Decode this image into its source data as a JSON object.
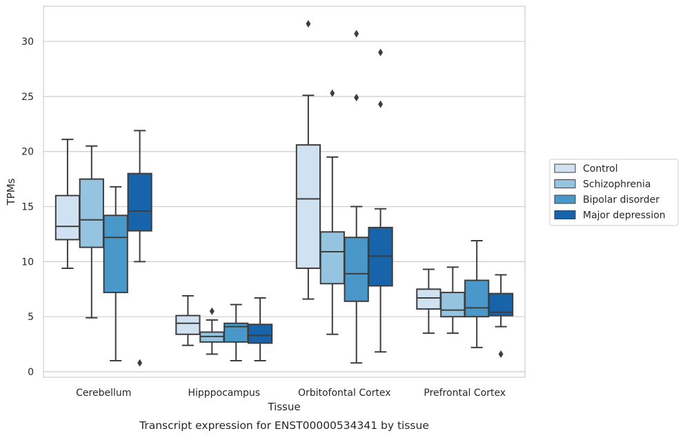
{
  "chart_data": {
    "type": "box",
    "title": "",
    "caption": "Transcript expression for ENST00000534341 by tissue",
    "xlabel": "Tissue",
    "ylabel": "TPMs",
    "ylim": [
      -0.5,
      33.2
    ],
    "yticks": [
      0,
      5,
      10,
      15,
      20,
      25,
      30
    ],
    "grid": true,
    "legend_position": "right",
    "categories": [
      "Cerebellum",
      "Hipppocampus",
      "Orbitofontal Cortex",
      "Prefrontal Cortex"
    ],
    "series": [
      {
        "name": "Control",
        "color": "#d0e1f2",
        "boxes": [
          {
            "whislo": 9.4,
            "q1": 12.0,
            "med": 13.2,
            "q3": 16.0,
            "whishi": 21.1,
            "fliers": []
          },
          {
            "whislo": 2.4,
            "q1": 3.4,
            "med": 4.4,
            "q3": 5.1,
            "whishi": 6.9,
            "fliers": []
          },
          {
            "whislo": 6.6,
            "q1": 9.4,
            "med": 15.7,
            "q3": 20.6,
            "whishi": 25.1,
            "fliers": [
              31.6
            ]
          },
          {
            "whislo": 3.5,
            "q1": 5.7,
            "med": 6.7,
            "q3": 7.5,
            "whishi": 9.3,
            "fliers": []
          }
        ]
      },
      {
        "name": "Schizophrenia",
        "color": "#94c4df",
        "boxes": [
          {
            "whislo": 4.9,
            "q1": 11.3,
            "med": 13.8,
            "q3": 17.5,
            "whishi": 20.5,
            "fliers": []
          },
          {
            "whislo": 1.6,
            "q1": 2.7,
            "med": 3.2,
            "q3": 3.6,
            "whishi": 4.7,
            "fliers": [
              5.5
            ]
          },
          {
            "whislo": 3.4,
            "q1": 8.0,
            "med": 10.9,
            "q3": 12.7,
            "whishi": 19.5,
            "fliers": [
              25.3
            ]
          },
          {
            "whislo": 3.5,
            "q1": 5.0,
            "med": 5.6,
            "q3": 7.2,
            "whishi": 9.5,
            "fliers": []
          }
        ]
      },
      {
        "name": "Bipolar disorder",
        "color": "#4a98c9",
        "boxes": [
          {
            "whislo": 1.0,
            "q1": 7.2,
            "med": 12.2,
            "q3": 14.2,
            "whishi": 16.8,
            "fliers": []
          },
          {
            "whislo": 1.0,
            "q1": 2.7,
            "med": 4.1,
            "q3": 4.4,
            "whishi": 6.1,
            "fliers": []
          },
          {
            "whislo": 0.8,
            "q1": 6.4,
            "med": 8.9,
            "q3": 12.2,
            "whishi": 15.0,
            "fliers": [
              30.7,
              24.9
            ]
          },
          {
            "whislo": 2.2,
            "q1": 5.0,
            "med": 5.8,
            "q3": 8.3,
            "whishi": 11.9,
            "fliers": []
          }
        ]
      },
      {
        "name": "Major depression",
        "color": "#1764ab",
        "boxes": [
          {
            "whislo": 10.0,
            "q1": 12.8,
            "med": 14.6,
            "q3": 18.0,
            "whishi": 21.9,
            "fliers": [
              0.8
            ]
          },
          {
            "whislo": 1.0,
            "q1": 2.6,
            "med": 3.3,
            "q3": 4.3,
            "whishi": 6.7,
            "fliers": []
          },
          {
            "whislo": 1.8,
            "q1": 7.8,
            "med": 10.5,
            "q3": 13.1,
            "whishi": 14.8,
            "fliers": [
              29.0,
              24.3
            ]
          },
          {
            "whislo": 4.1,
            "q1": 5.1,
            "med": 5.4,
            "q3": 7.1,
            "whishi": 8.8,
            "fliers": [
              1.6
            ]
          }
        ]
      }
    ]
  }
}
